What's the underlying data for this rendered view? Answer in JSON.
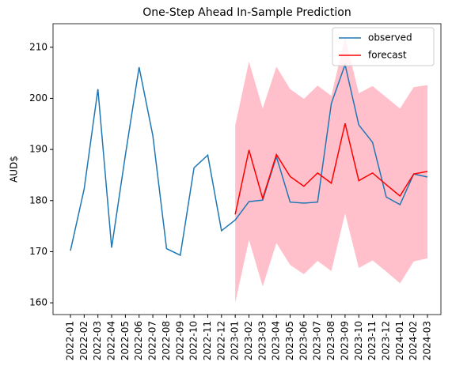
{
  "chart_data": {
    "type": "line",
    "title": "One-Step Ahead In-Sample Prediction",
    "y_label": "AUD$",
    "categories": [
      "2022-01",
      "2022-02",
      "2022-03",
      "2022-04",
      "2022-05",
      "2022-06",
      "2022-07",
      "2022-08",
      "2022-09",
      "2022-10",
      "2022-11",
      "2022-12",
      "2023-01",
      "2023-02",
      "2023-03",
      "2023-04",
      "2023-05",
      "2023-06",
      "2023-07",
      "2023-08",
      "2023-09",
      "2023-10",
      "2023-11",
      "2023-12",
      "2024-01",
      "2024-02",
      "2024-03"
    ],
    "series": [
      {
        "name": "observed",
        "color": "#1f77b4",
        "values": [
          170.2,
          182.3,
          201.8,
          170.8,
          188.9,
          206.1,
          192.7,
          170.6,
          169.3,
          186.4,
          188.9,
          174.1,
          176.2,
          179.8,
          180.1,
          188.6,
          179.7,
          179.5,
          179.7,
          199.0,
          206.6,
          194.8,
          191.4,
          180.7,
          179.2,
          185.2,
          184.6
        ]
      },
      {
        "name": "forecast",
        "color": "#ff0000",
        "values": [
          null,
          null,
          null,
          null,
          null,
          null,
          null,
          null,
          null,
          null,
          null,
          null,
          177.3,
          189.9,
          180.4,
          189.0,
          184.7,
          182.8,
          185.4,
          183.4,
          195.1,
          183.9,
          185.4,
          183.1,
          180.9,
          185.2,
          185.7
        ]
      }
    ],
    "interval": {
      "color": "pink",
      "lower": [
        null,
        null,
        null,
        null,
        null,
        null,
        null,
        null,
        null,
        null,
        null,
        null,
        160.0,
        172.3,
        163.2,
        171.7,
        167.4,
        165.6,
        168.2,
        166.2,
        177.5,
        166.8,
        168.3,
        166.1,
        163.8,
        168.1,
        168.7
      ],
      "upper": [
        null,
        null,
        null,
        null,
        null,
        null,
        null,
        null,
        null,
        null,
        null,
        null,
        194.7,
        207.2,
        198.0,
        206.2,
        201.8,
        199.9,
        202.5,
        200.5,
        212.0,
        201.0,
        202.4,
        200.2,
        198.0,
        202.2,
        202.6
      ]
    },
    "ylim": [
      157.7,
      214.6
    ],
    "yticks": [
      160,
      170,
      180,
      190,
      200,
      210
    ],
    "grid": false,
    "legend": "upper right"
  }
}
